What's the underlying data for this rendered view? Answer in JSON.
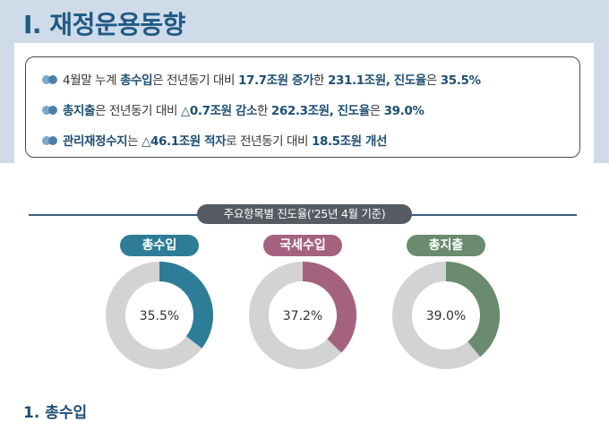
{
  "header": {
    "title": "Ⅰ. 재정운용동향"
  },
  "summary": {
    "line1": {
      "t1": "4월말 누계 ",
      "b1": "총수입",
      "t2": "은 전년동기 대비 ",
      "b2": "17.7조원 증가",
      "t3": "한 ",
      "b3": "231.1조원, 진도율",
      "t4": "은 ",
      "b4": "35.5%"
    },
    "line2": {
      "b1": "총지출",
      "t1": "은 전년동기 대비 ",
      "b2": "△0.7조원 감소",
      "t2": "한 ",
      "b3": "262.3조원, 진도율",
      "t3": "은 ",
      "b4": "39.0%"
    },
    "line3": {
      "b1": "관리재정수지",
      "t1": "는 ",
      "b2": "△46.1조원 적자",
      "t2": "로 전년동기 대비 ",
      "b3": "18.5조원 개선"
    }
  },
  "progress_section": {
    "caption": "주요항목별 진도율('25년 4월 기준)"
  },
  "chart_data": [
    {
      "type": "pie",
      "label": "총수입",
      "value_text": "35.5%",
      "value": 35.5,
      "color": "#2e7d98",
      "track_color": "#d3d3d3"
    },
    {
      "type": "pie",
      "label": "국세수입",
      "value_text": "37.2%",
      "value": 37.2,
      "color": "#a5627f",
      "track_color": "#d3d3d3"
    },
    {
      "type": "pie",
      "label": "총지출",
      "value_text": "39.0%",
      "value": 39.0,
      "color": "#6a8b6e",
      "track_color": "#d3d3d3"
    }
  ],
  "next_section": {
    "heading": "1. 총수입"
  }
}
